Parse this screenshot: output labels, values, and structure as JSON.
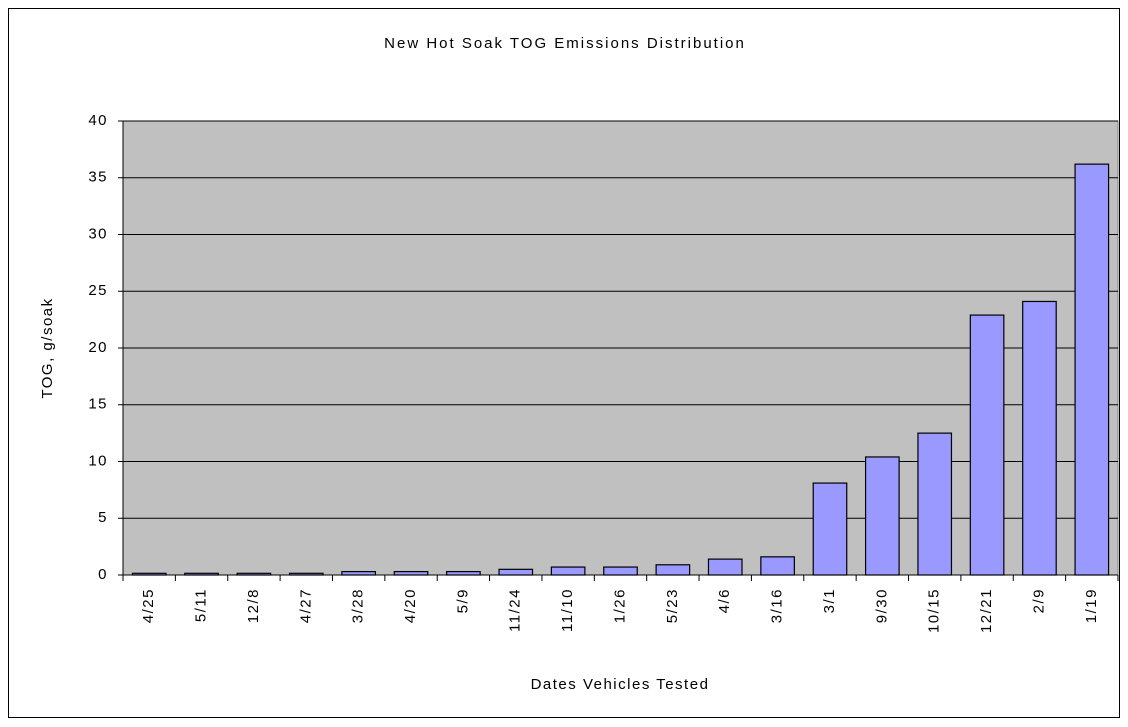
{
  "chart_data": {
    "type": "bar",
    "title": "New Hot Soak TOG Emissions Distribution",
    "x_label": "Dates Vehicles Tested",
    "y_label": "TOG, g/soak",
    "categories": [
      "4/25",
      "5/11",
      "12/8",
      "4/27",
      "3/28",
      "4/20",
      "5/9",
      "11/24",
      "11/10",
      "1/26",
      "5/23",
      "4/6",
      "3/16",
      "3/1",
      "9/30",
      "10/15",
      "12/21",
      "2/9",
      "1/19"
    ],
    "values": [
      0.15,
      0.15,
      0.15,
      0.15,
      0.3,
      0.3,
      0.3,
      0.5,
      0.7,
      0.7,
      0.9,
      1.4,
      1.6,
      8.1,
      10.4,
      12.5,
      22.9,
      24.1,
      36.2
    ],
    "color": "#9999ff",
    "plot_background": "#c0c0c0",
    "ylim": [
      0,
      40
    ],
    "yticks": [
      0,
      5,
      10,
      15,
      20,
      25,
      30,
      35,
      40
    ],
    "grid": true
  }
}
